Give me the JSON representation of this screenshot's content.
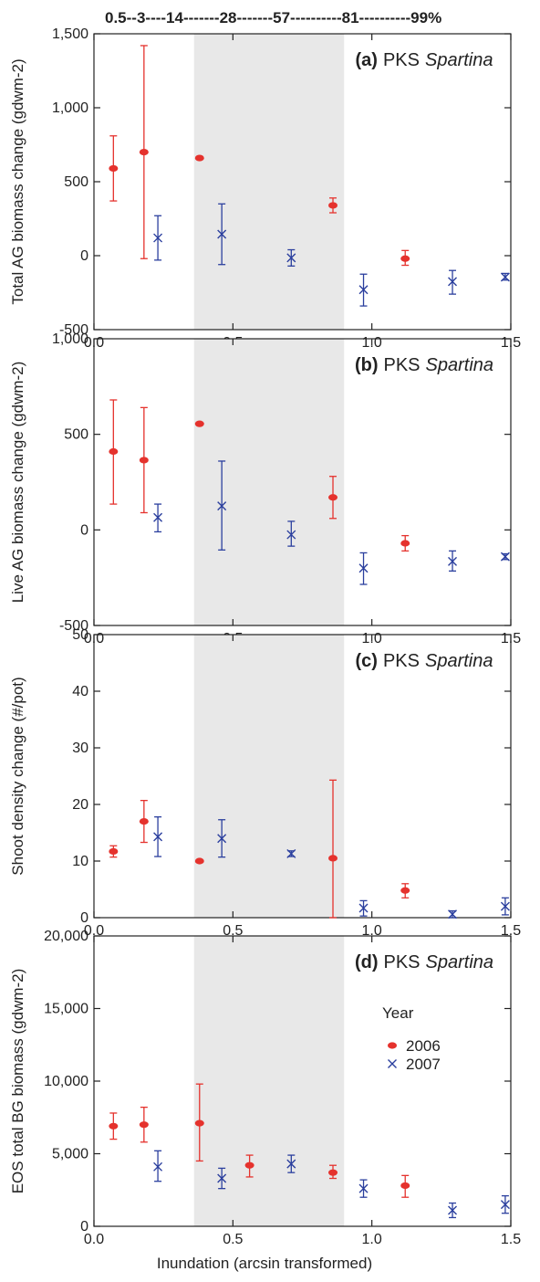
{
  "top_scale_label": "0.5--3----14-------28-------57----------81----------99%",
  "xlabel": "Inundation  (arcsin transformed)",
  "colors": {
    "y2006": "#e5322d",
    "y2007": "#2b3f9e",
    "shade": "#e8e8e8",
    "axis": "#222222"
  },
  "shade_x": [
    0.36,
    0.9
  ],
  "legend": {
    "title": "Year",
    "entries": [
      "2006",
      "2007"
    ]
  },
  "chart_data": [
    {
      "type": "scatter",
      "panel_tag": "(a)",
      "site": "PKS",
      "species": "Spartina",
      "ylabel": "Total AG biomass change (gdwm-2)",
      "xlim": [
        0.0,
        1.5
      ],
      "ylim": [
        -500,
        1500
      ],
      "x_ticks": [
        "0.0",
        "0.5",
        "1.0",
        "1.5"
      ],
      "y_ticks": [
        "-500",
        "0",
        "500",
        "1,000",
        "1,500"
      ],
      "series": [
        {
          "year": "2006",
          "points": [
            {
              "x": 0.07,
              "y": 590,
              "lo": 370,
              "hi": 810
            },
            {
              "x": 0.18,
              "y": 700,
              "lo": -20,
              "hi": 1420
            },
            {
              "x": 0.38,
              "y": 660,
              "lo": 660,
              "hi": 660
            },
            {
              "x": 0.86,
              "y": 340,
              "lo": 290,
              "hi": 390
            },
            {
              "x": 1.12,
              "y": -20,
              "lo": -65,
              "hi": 35
            }
          ]
        },
        {
          "year": "2007",
          "points": [
            {
              "x": 0.23,
              "y": 120,
              "lo": -30,
              "hi": 270
            },
            {
              "x": 0.46,
              "y": 145,
              "lo": -60,
              "hi": 350
            },
            {
              "x": 0.71,
              "y": -15,
              "lo": -70,
              "hi": 40
            },
            {
              "x": 0.97,
              "y": -230,
              "lo": -340,
              "hi": -125
            },
            {
              "x": 1.29,
              "y": -175,
              "lo": -260,
              "hi": -100
            },
            {
              "x": 1.48,
              "y": -145,
              "lo": -165,
              "hi": -120
            }
          ]
        }
      ]
    },
    {
      "type": "scatter",
      "panel_tag": "(b)",
      "site": "PKS",
      "species": "Spartina",
      "ylabel": "Live AG biomass change (gdwm-2)",
      "xlim": [
        0.0,
        1.5
      ],
      "ylim": [
        -500,
        1000
      ],
      "x_ticks": [
        "0.0",
        "0.5",
        "1.0",
        "1.5"
      ],
      "y_ticks": [
        "-500",
        "0",
        "500",
        "1,000"
      ],
      "series": [
        {
          "year": "2006",
          "points": [
            {
              "x": 0.07,
              "y": 410,
              "lo": 135,
              "hi": 680
            },
            {
              "x": 0.18,
              "y": 365,
              "lo": 90,
              "hi": 640
            },
            {
              "x": 0.38,
              "y": 555,
              "lo": 555,
              "hi": 555
            },
            {
              "x": 0.86,
              "y": 170,
              "lo": 60,
              "hi": 280
            },
            {
              "x": 1.12,
              "y": -70,
              "lo": -110,
              "hi": -30
            }
          ]
        },
        {
          "year": "2007",
          "points": [
            {
              "x": 0.23,
              "y": 65,
              "lo": -10,
              "hi": 135
            },
            {
              "x": 0.46,
              "y": 125,
              "lo": -105,
              "hi": 360
            },
            {
              "x": 0.71,
              "y": -25,
              "lo": -85,
              "hi": 45
            },
            {
              "x": 0.97,
              "y": -200,
              "lo": -285,
              "hi": -120
            },
            {
              "x": 1.29,
              "y": -165,
              "lo": -215,
              "hi": -110
            },
            {
              "x": 1.48,
              "y": -140,
              "lo": -155,
              "hi": -125
            }
          ]
        }
      ]
    },
    {
      "type": "scatter",
      "panel_tag": "(c)",
      "site": "PKS",
      "species": "Spartina",
      "ylabel": "Shoot density change (#/pot)",
      "xlim": [
        0.0,
        1.5
      ],
      "ylim": [
        0,
        50
      ],
      "x_ticks": [
        "0.0",
        "0.5",
        "1.0",
        "1.5"
      ],
      "y_ticks": [
        "0",
        "10",
        "20",
        "30",
        "40",
        "50"
      ],
      "series": [
        {
          "year": "2006",
          "points": [
            {
              "x": 0.07,
              "y": 11.7,
              "lo": 10.7,
              "hi": 12.7
            },
            {
              "x": 0.18,
              "y": 17.0,
              "lo": 13.3,
              "hi": 20.7
            },
            {
              "x": 0.38,
              "y": 10.0,
              "lo": 10.0,
              "hi": 10.0
            },
            {
              "x": 0.86,
              "y": 10.5,
              "lo": 0.0,
              "hi": 24.3
            },
            {
              "x": 1.12,
              "y": 4.8,
              "lo": 3.5,
              "hi": 6.0
            }
          ]
        },
        {
          "year": "2007",
          "points": [
            {
              "x": 0.23,
              "y": 14.3,
              "lo": 10.8,
              "hi": 17.8
            },
            {
              "x": 0.46,
              "y": 14.0,
              "lo": 10.7,
              "hi": 17.3
            },
            {
              "x": 0.71,
              "y": 11.3,
              "lo": 10.8,
              "hi": 11.8
            },
            {
              "x": 0.97,
              "y": 1.7,
              "lo": 0.3,
              "hi": 3.0
            },
            {
              "x": 1.29,
              "y": 0.6,
              "lo": 0.0,
              "hi": 1.2
            },
            {
              "x": 1.48,
              "y": 2.0,
              "lo": 0.5,
              "hi": 3.5
            }
          ]
        }
      ]
    },
    {
      "type": "scatter",
      "panel_tag": "(d)",
      "site": "PKS",
      "species": "Spartina",
      "ylabel": "EOS total BG biomass (gdwm-2)",
      "xlim": [
        0.0,
        1.5
      ],
      "ylim": [
        0,
        20000
      ],
      "x_ticks": [
        "0.0",
        "0.5",
        "1.0",
        "1.5"
      ],
      "y_ticks": [
        "0",
        "5,000",
        "10,000",
        "15,000",
        "20,000"
      ],
      "series": [
        {
          "year": "2006",
          "points": [
            {
              "x": 0.07,
              "y": 6900,
              "lo": 6000,
              "hi": 7800
            },
            {
              "x": 0.18,
              "y": 7000,
              "lo": 5800,
              "hi": 8200
            },
            {
              "x": 0.38,
              "y": 7100,
              "lo": 4500,
              "hi": 9800
            },
            {
              "x": 0.56,
              "y": 4200,
              "lo": 3400,
              "hi": 4900
            },
            {
              "x": 0.86,
              "y": 3700,
              "lo": 3300,
              "hi": 4200
            },
            {
              "x": 1.12,
              "y": 2800,
              "lo": 2000,
              "hi": 3500
            }
          ]
        },
        {
          "year": "2007",
          "points": [
            {
              "x": 0.23,
              "y": 4100,
              "lo": 3100,
              "hi": 5200
            },
            {
              "x": 0.46,
              "y": 3300,
              "lo": 2600,
              "hi": 4000
            },
            {
              "x": 0.71,
              "y": 4300,
              "lo": 3700,
              "hi": 4900
            },
            {
              "x": 0.97,
              "y": 2600,
              "lo": 2000,
              "hi": 3200
            },
            {
              "x": 1.29,
              "y": 1100,
              "lo": 600,
              "hi": 1600
            },
            {
              "x": 1.48,
              "y": 1500,
              "lo": 900,
              "hi": 2100
            }
          ]
        }
      ]
    }
  ]
}
